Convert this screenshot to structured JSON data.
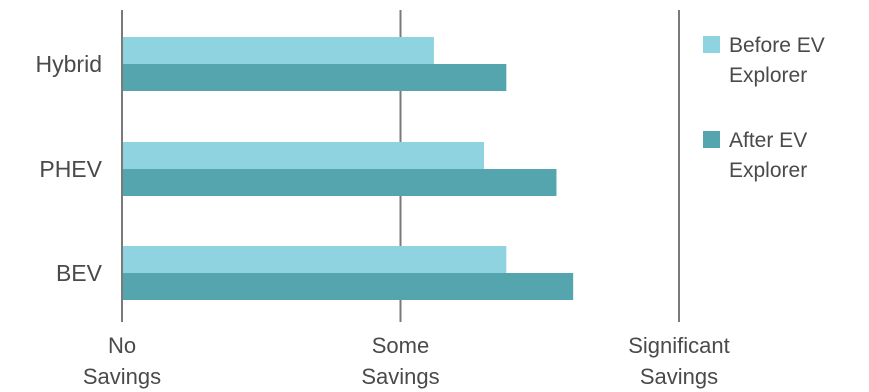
{
  "chart_data": {
    "type": "bar",
    "orientation": "horizontal",
    "categories": [
      "Hybrid",
      "PHEV",
      "BEV"
    ],
    "series": [
      {
        "name": "Before EV Explorer",
        "values": [
          0.56,
          0.65,
          0.69
        ],
        "color": "#8fd3e1"
      },
      {
        "name": "After EV Explorer",
        "values": [
          0.69,
          0.78,
          0.81
        ],
        "color": "#55a5ae"
      }
    ],
    "x_ticks": [
      {
        "value": 0,
        "label": [
          "No",
          "Savings"
        ]
      },
      {
        "value": 0.5,
        "label": [
          "Some",
          "Savings"
        ]
      },
      {
        "value": 1,
        "label": [
          "Significant",
          "Savings"
        ]
      }
    ],
    "xlim": [
      0,
      1
    ],
    "grid": "vertical lines at ticks",
    "legend_position": "right",
    "title": "",
    "xlabel": "",
    "ylabel": ""
  }
}
